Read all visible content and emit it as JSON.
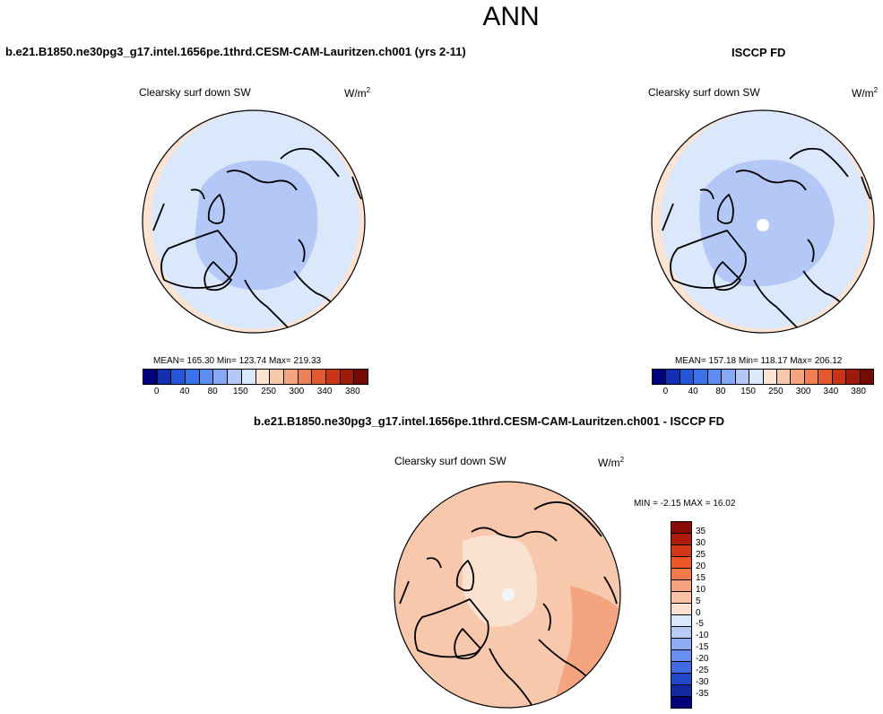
{
  "chart_data": [
    {
      "type": "heatmap",
      "title": "Clearsky surf down SW",
      "case": "b.e21.B1850.ne30pg3_g17.intel.1656pe.1thrd.CESM-CAM-Lauritzen.ch001 (yrs 2-11)",
      "units": "W/m",
      "units_sup": "2",
      "stats": {
        "mean": "165.30",
        "min": "123.74",
        "max": "219.33"
      },
      "stats_text": "MEAN= 165.30  Min= 123.74  Max= 219.33"
    },
    {
      "type": "heatmap",
      "title": "Clearsky surf down SW",
      "case": "ISCCP FD",
      "units": "W/m",
      "units_sup": "2",
      "stats": {
        "mean": "157.18",
        "min": "118.17",
        "max": "206.12"
      },
      "stats_text": "MEAN= 157.18  Min= 118.17  Max= 206.12"
    },
    {
      "type": "heatmap",
      "title": "Clearsky surf down SW",
      "case": "b.e21.B1850.ne30pg3_g17.intel.1656pe.1thrd.CESM-CAM-Lauritzen.ch001 - ISCCP FD",
      "units": "W/m",
      "units_sup": "2",
      "stats": {
        "min": "-2.15",
        "max": "16.02"
      },
      "stats_text": "MIN =  -2.15 MAX =  16.02"
    }
  ],
  "main_title": "ANN",
  "colorbar_abs": {
    "levels": [
      "0",
      "40",
      "80",
      "150",
      "250",
      "300",
      "340",
      "380"
    ],
    "colors": [
      "#00007a",
      "#1030b0",
      "#2455d8",
      "#3a72ec",
      "#5d8df2",
      "#86a9f5",
      "#b4c8f7",
      "#dbe7fb",
      "#fce3d2",
      "#f8c8ad",
      "#f4a57f",
      "#ee7f56",
      "#e3582f",
      "#c93416",
      "#9e1a0a",
      "#760a05"
    ]
  },
  "colorbar_diff": {
    "levels": [
      "35",
      "30",
      "25",
      "20",
      "15",
      "10",
      "5",
      "0",
      "-5",
      "-10",
      "-15",
      "-20",
      "-25",
      "-30",
      "-35"
    ],
    "colors": [
      "#8a0b05",
      "#b01c0c",
      "#d43617",
      "#ec5526",
      "#f47a4e",
      "#f7a27e",
      "#f9c4a6",
      "#fbe1cf",
      "#dce8fb",
      "#b8cbf6",
      "#8eacf3",
      "#668ff0",
      "#3f6ce6",
      "#2148c8",
      "#1029a0",
      "#000078"
    ]
  },
  "colors": {
    "land_stroke": "#000000",
    "map1": {
      "outer": "#dbe7fb",
      "inner": "#b4c8f7",
      "rim": "#fce3d2"
    },
    "map2": {
      "outer": "#dbe7fb",
      "inner": "#b4c8f7",
      "rim": "#fce3d2"
    },
    "diff": {
      "outer": "#f8c8ad",
      "inner": "#fbe1cf",
      "hot": "#f4a57f"
    }
  }
}
